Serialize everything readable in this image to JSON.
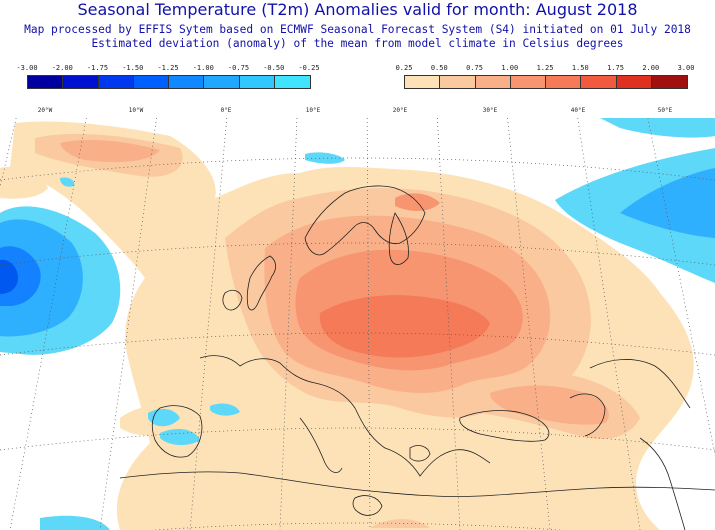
{
  "title": "Seasonal Temperature (T2m) Anomalies valid for month: August 2018",
  "subtitle1": "Map processed by EFFIS Sytem based on ECMWF Seasonal Forecast System (S4) initiated on 01 July 2018",
  "subtitle2": "Estimated deviation (anomaly) of the mean from model climate in Celsius degrees",
  "legend_cold": {
    "labels": [
      "-3.00",
      "-2.00",
      "-1.75",
      "-1.50",
      "-1.25",
      "-1.00",
      "-0.75",
      "-0.50",
      "-0.25"
    ],
    "colors": [
      "#0000a0",
      "#0010d0",
      "#0038f0",
      "#0060ff",
      "#1088ff",
      "#20a8ff",
      "#30c8ff",
      "#40e4ff"
    ]
  },
  "legend_warm": {
    "labels": [
      "0.25",
      "0.50",
      "0.75",
      "1.00",
      "1.25",
      "1.50",
      "1.75",
      "2.00",
      "3.00"
    ],
    "colors": [
      "#fde2b8",
      "#fbc9a0",
      "#f9b088",
      "#f79570",
      "#f57a58",
      "#f25a40",
      "#e03020",
      "#a01010"
    ]
  },
  "lon_labels": [
    "20°W",
    "10°W",
    "0°E",
    "10°E",
    "20°E",
    "30°E",
    "40°E",
    "50°E"
  ],
  "colors": {
    "title": "#1111aa",
    "sea": "#ffffff",
    "land_neutral": "#ffffff",
    "grid": "#555555",
    "coast": "#222222"
  }
}
